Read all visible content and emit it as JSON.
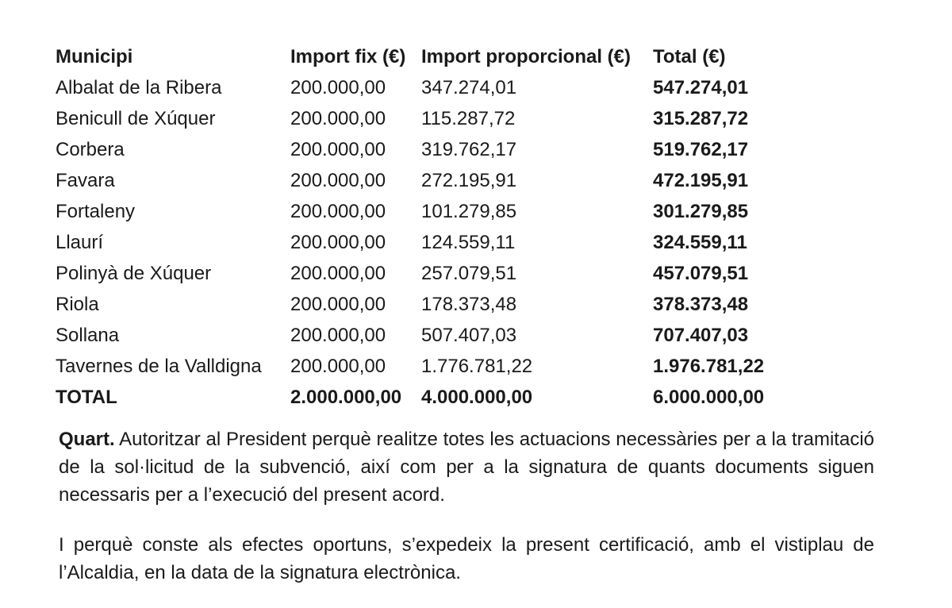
{
  "table": {
    "headers": [
      "Municipi",
      "Import fix (€)",
      "Import proporcional (€)",
      "Total (€)"
    ],
    "rows": [
      {
        "municipi": "Albalat de la Ribera",
        "fix": "200.000,00",
        "proporcional": "347.274,01",
        "total": "547.274,01"
      },
      {
        "municipi": "Benicull de Xúquer",
        "fix": "200.000,00",
        "proporcional": "115.287,72",
        "total": "315.287,72"
      },
      {
        "municipi": "Corbera",
        "fix": "200.000,00",
        "proporcional": "319.762,17",
        "total": "519.762,17"
      },
      {
        "municipi": "Favara",
        "fix": "200.000,00",
        "proporcional": "272.195,91",
        "total": "472.195,91"
      },
      {
        "municipi": "Fortaleny",
        "fix": "200.000,00",
        "proporcional": "101.279,85",
        "total": "301.279,85"
      },
      {
        "municipi": "Llaurí",
        "fix": "200.000,00",
        "proporcional": "124.559,11",
        "total": "324.559,11"
      },
      {
        "municipi": "Polinyà de Xúquer",
        "fix": "200.000,00",
        "proporcional": "257.079,51",
        "total": "457.079,51"
      },
      {
        "municipi": "Riola",
        "fix": "200.000,00",
        "proporcional": "178.373,48",
        "total": "378.373,48"
      },
      {
        "municipi": "Sollana",
        "fix": "200.000,00",
        "proporcional": "507.407,03",
        "total": "707.407,03"
      },
      {
        "municipi": "Tavernes de la Valldigna",
        "fix": "200.000,00",
        "proporcional": "1.776.781,22",
        "total": "1.976.781,22"
      }
    ],
    "total_row": {
      "label": "TOTAL",
      "fix": "2.000.000,00",
      "proporcional": "4.000.000,00",
      "total": "6.000.000,00"
    }
  },
  "paragraphs": {
    "quart_lead": "Quart.",
    "quart_text": " Autoritzar al President perquè realitze totes les actuacions necessàries per a la tramitació de la sol·licitud de la subvenció, així com per a la signatura de quants documents siguen necessaris per a l’execució del present acord.",
    "closing_text": "I perquè conste als efectes oportuns, s’expedeix la present certificació, amb el vistiplau de l’Alcaldia, en la data de la signatura electrònica."
  }
}
